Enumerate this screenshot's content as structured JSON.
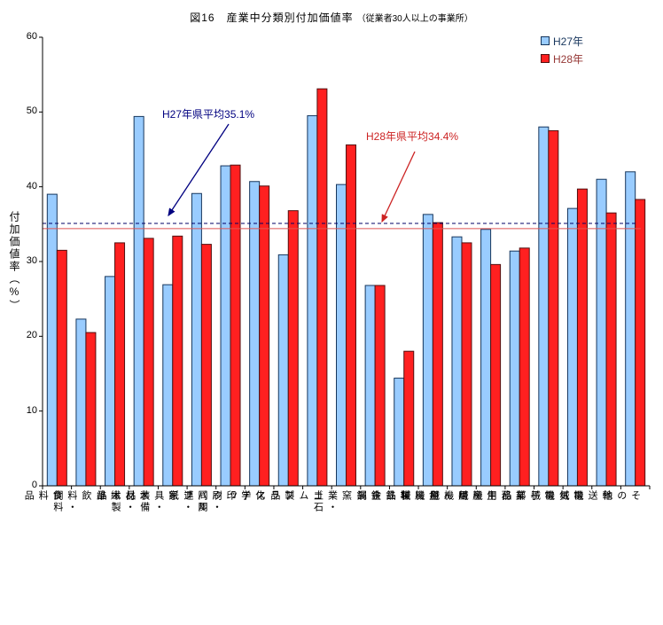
{
  "title": {
    "main": "図16　産業中分類別付加価値率",
    "note": "（従業者30人以上の事業所）"
  },
  "legend": [
    {
      "label": "H27年",
      "color": "#99CCFF",
      "border": "#16365C",
      "text_color": "#17365D"
    },
    {
      "label": "H28年",
      "color": "#FF2020",
      "border": "#501010",
      "text_color": "#953735"
    }
  ],
  "y_axis": {
    "label": "付加価値率（%）",
    "ticks": [
      0,
      10,
      20,
      30,
      40,
      50,
      60
    ]
  },
  "annotations": [
    {
      "text": "H27年県平均35.1%",
      "value": 35.1,
      "text_color": "#000080",
      "line_color": "#000066",
      "line_dash": "4,3"
    },
    {
      "text": "H28年県平均34.4%",
      "value": 34.4,
      "text_color": "#CC2222",
      "line_color": "#DD5555",
      "line_dash": ""
    }
  ],
  "chart_data": {
    "type": "bar",
    "title": "図16　産業中分類別付加価値率（従業者30人以上の事業所）",
    "ylabel": "付加価値率（%）",
    "ylim": [
      0,
      60
    ],
    "grid": false,
    "legend_position": "top-right",
    "categories": [
      "食料品",
      "飲料・飼料",
      "繊維",
      "木材・木製品",
      "家具・装備品",
      "パルプ・紙",
      "印刷・同関連",
      "化学",
      "プラスチック",
      "ゴム製品",
      "窯業・土石",
      "鉄鋼",
      "非鉄金属",
      "金属製品",
      "はん用機械",
      "生産用機械",
      "業務用機械",
      "電子部品",
      "電気機械",
      "輸送機械",
      "その他"
    ],
    "series": [
      {
        "name": "H27年",
        "color": "#99CCFF",
        "border": "#16365C",
        "values": [
          39.0,
          22.3,
          28.0,
          49.4,
          26.9,
          39.1,
          42.8,
          40.7,
          30.9,
          49.5,
          40.3,
          26.8,
          14.4,
          36.3,
          33.3,
          34.3,
          31.4,
          48.0,
          37.1,
          41.0,
          42.0
        ]
      },
      {
        "name": "H28年",
        "color": "#FF2020",
        "border": "#501010",
        "values": [
          31.5,
          20.5,
          32.5,
          33.1,
          33.4,
          32.3,
          42.9,
          40.1,
          36.8,
          53.1,
          45.6,
          26.8,
          18.0,
          35.2,
          32.5,
          29.6,
          31.8,
          47.5,
          39.7,
          36.5,
          38.3
        ]
      }
    ],
    "ref_lines": [
      {
        "label": "H27年県平均",
        "value": 35.1
      },
      {
        "label": "H28年県平均",
        "value": 34.4
      }
    ]
  }
}
